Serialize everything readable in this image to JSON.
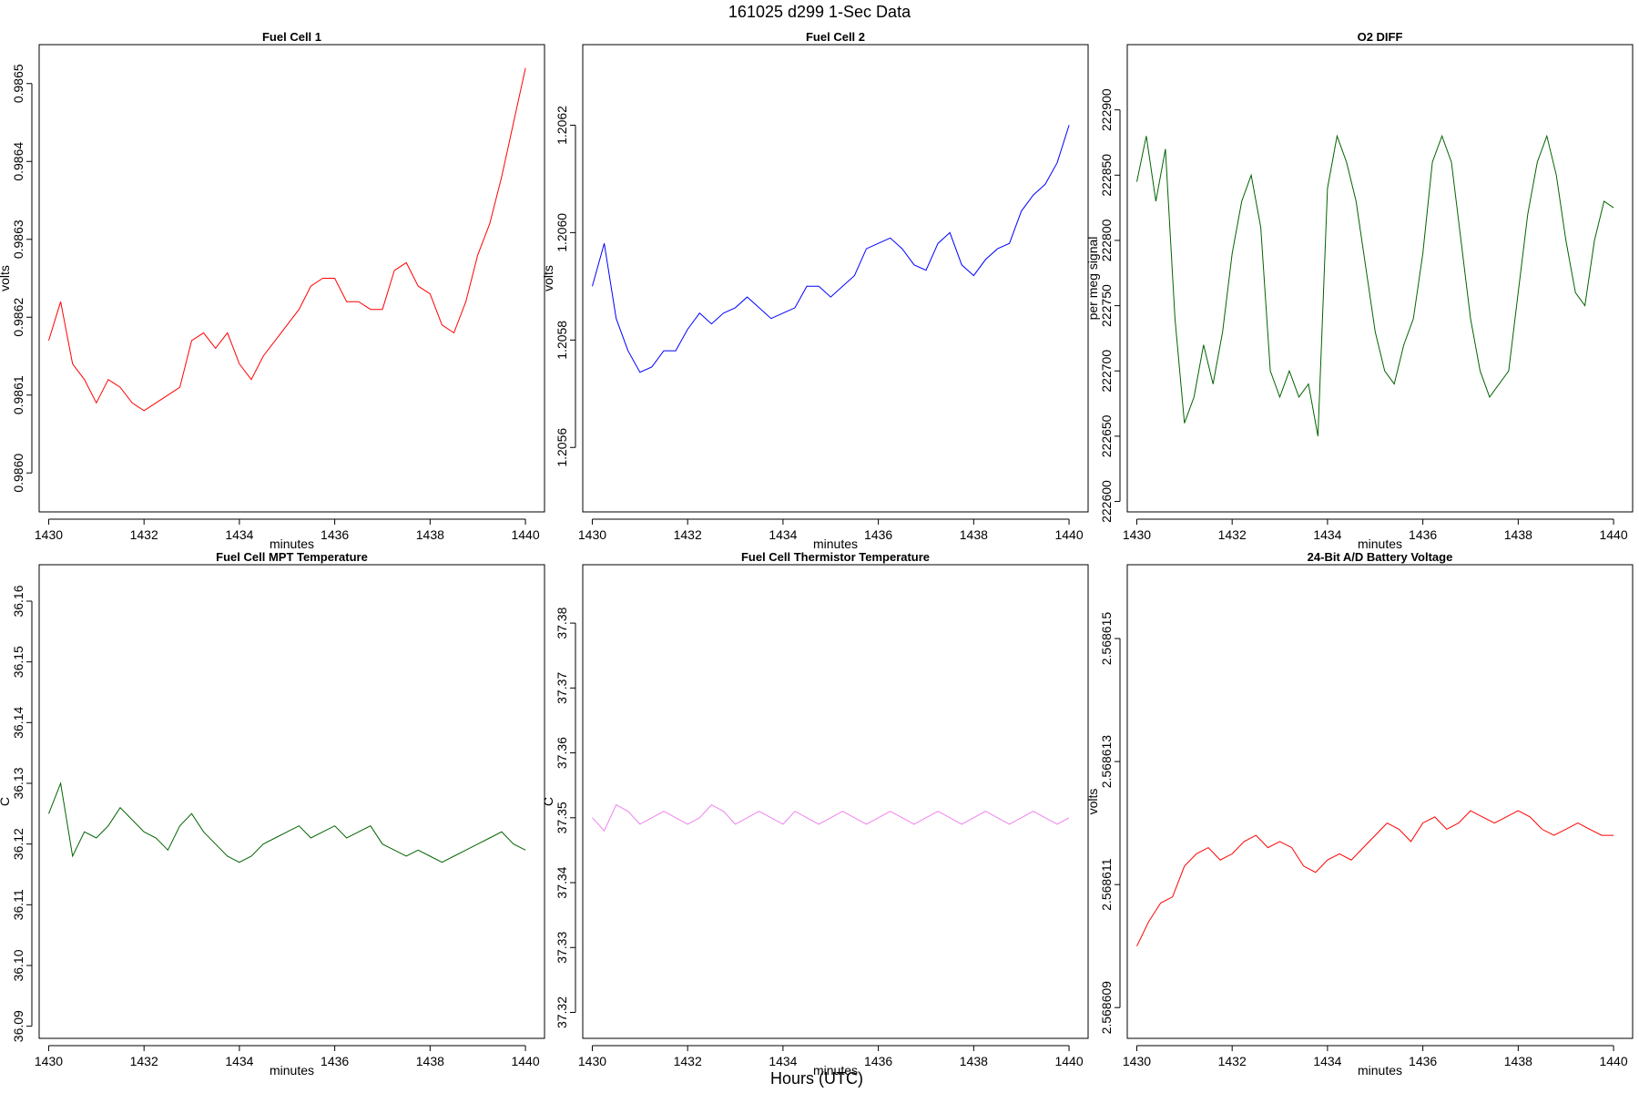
{
  "figure": {
    "title": "161025    d299    1-Sec Data",
    "xlabel": "Hours (UTC)"
  },
  "chart_data": [
    {
      "type": "line",
      "title": "Fuel Cell 1",
      "xlabel": "minutes",
      "ylabel": "volts",
      "color": "#ff0000",
      "xlim": [
        1429.8,
        1440.4
      ],
      "ylim": [
        0.98595,
        0.98655
      ],
      "xticks": [
        1430,
        1432,
        1434,
        1436,
        1438,
        1440
      ],
      "yticks": [
        0.986,
        0.9861,
        0.9862,
        0.9863,
        0.9864,
        0.9865
      ],
      "ytick_labels": [
        "0.9860",
        "0.9861",
        "0.9862",
        "0.9863",
        "0.9864",
        "0.9865"
      ],
      "series": [
        {
          "x": [
            1430,
            1430.25,
            1430.5,
            1430.75,
            1431,
            1431.25,
            1431.5,
            1431.75,
            1432,
            1432.25,
            1432.5,
            1432.75,
            1433,
            1433.25,
            1433.5,
            1433.75,
            1434,
            1434.25,
            1434.5,
            1434.75,
            1435,
            1435.25,
            1435.5,
            1435.75,
            1436,
            1436.25,
            1436.5,
            1436.75,
            1437,
            1437.25,
            1437.5,
            1437.75,
            1438,
            1438.25,
            1438.5,
            1438.75,
            1439,
            1439.25,
            1439.5,
            1439.75,
            1440
          ],
          "values": [
            0.98617,
            0.98622,
            0.98614,
            0.98612,
            0.98609,
            0.98612,
            0.98611,
            0.98609,
            0.98608,
            0.98609,
            0.9861,
            0.98611,
            0.98617,
            0.98618,
            0.98616,
            0.98618,
            0.98614,
            0.98612,
            0.98615,
            0.98617,
            0.98619,
            0.98621,
            0.98624,
            0.98625,
            0.98625,
            0.98622,
            0.98622,
            0.98621,
            0.98621,
            0.98626,
            0.98627,
            0.98624,
            0.98623,
            0.98619,
            0.98618,
            0.98622,
            0.98628,
            0.98632,
            0.98638,
            0.98645,
            0.98652
          ]
        }
      ]
    },
    {
      "type": "line",
      "title": "Fuel Cell 2",
      "xlabel": "minutes",
      "ylabel": "volts",
      "color": "#0000ff",
      "xlim": [
        1429.8,
        1440.4
      ],
      "ylim": [
        1.20548,
        1.20635
      ],
      "xticks": [
        1430,
        1432,
        1434,
        1436,
        1438,
        1440
      ],
      "yticks": [
        1.2056,
        1.2058,
        1.206,
        1.2062
      ],
      "ytick_labels": [
        "1.2056",
        "1.2058",
        "1.2060",
        "1.2062"
      ],
      "series": [
        {
          "x": [
            1430,
            1430.25,
            1430.5,
            1430.75,
            1431,
            1431.25,
            1431.5,
            1431.75,
            1432,
            1432.25,
            1432.5,
            1432.75,
            1433,
            1433.25,
            1433.5,
            1433.75,
            1434,
            1434.25,
            1434.5,
            1434.75,
            1435,
            1435.25,
            1435.5,
            1435.75,
            1436,
            1436.25,
            1436.5,
            1436.75,
            1437,
            1437.25,
            1437.5,
            1437.75,
            1438,
            1438.25,
            1438.5,
            1438.75,
            1439,
            1439.25,
            1439.5,
            1439.75,
            1440
          ],
          "values": [
            1.2059,
            1.20598,
            1.20584,
            1.20578,
            1.20574,
            1.20575,
            1.20578,
            1.20578,
            1.20582,
            1.20585,
            1.20583,
            1.20585,
            1.20586,
            1.20588,
            1.20586,
            1.20584,
            1.20585,
            1.20586,
            1.2059,
            1.2059,
            1.20588,
            1.2059,
            1.20592,
            1.20597,
            1.20598,
            1.20599,
            1.20597,
            1.20594,
            1.20593,
            1.20598,
            1.206,
            1.20594,
            1.20592,
            1.20595,
            1.20597,
            1.20598,
            1.20604,
            1.20607,
            1.20609,
            1.20613,
            1.2062
          ]
        }
      ]
    },
    {
      "type": "line",
      "title": "O2 DIFF",
      "xlabel": "minutes",
      "ylabel": "per meg signal",
      "color": "#006400",
      "xlim": [
        1429.8,
        1440.4
      ],
      "ylim": [
        222592,
        222950
      ],
      "xticks": [
        1430,
        1432,
        1434,
        1436,
        1438,
        1440
      ],
      "yticks": [
        222600,
        222650,
        222700,
        222750,
        222800,
        222850,
        222900
      ],
      "ytick_labels": [
        "222600",
        "222650",
        "222700",
        "222750",
        "222800",
        "222850",
        "222900"
      ],
      "series": [
        {
          "x": [
            1430,
            1430.2,
            1430.4,
            1430.6,
            1430.8,
            1431,
            1431.2,
            1431.4,
            1431.6,
            1431.8,
            1432,
            1432.2,
            1432.4,
            1432.6,
            1432.8,
            1433,
            1433.2,
            1433.4,
            1433.6,
            1433.8,
            1434,
            1434.2,
            1434.4,
            1434.6,
            1434.8,
            1435,
            1435.2,
            1435.4,
            1435.6,
            1435.8,
            1436,
            1436.2,
            1436.4,
            1436.6,
            1436.8,
            1437,
            1437.2,
            1437.4,
            1437.6,
            1437.8,
            1438,
            1438.2,
            1438.4,
            1438.6,
            1438.8,
            1439,
            1439.2,
            1439.4,
            1439.6,
            1439.8,
            1440
          ],
          "values": [
            222845,
            222880,
            222830,
            222870,
            222740,
            222660,
            222680,
            222720,
            222690,
            222730,
            222790,
            222830,
            222850,
            222810,
            222700,
            222680,
            222700,
            222680,
            222690,
            222650,
            222840,
            222880,
            222860,
            222830,
            222780,
            222730,
            222700,
            222690,
            222720,
            222740,
            222790,
            222860,
            222880,
            222860,
            222800,
            222740,
            222700,
            222680,
            222690,
            222700,
            222760,
            222820,
            222860,
            222880,
            222850,
            222800,
            222760,
            222750,
            222800,
            222830,
            222825
          ]
        }
      ]
    },
    {
      "type": "line",
      "title": "Fuel Cell MPT Temperature",
      "xlabel": "minutes",
      "ylabel": "C",
      "color": "#006400",
      "xlim": [
        1429.8,
        1440.4
      ],
      "ylim": [
        36.088,
        36.166
      ],
      "xticks": [
        1430,
        1432,
        1434,
        1436,
        1438,
        1440
      ],
      "yticks": [
        36.09,
        36.1,
        36.11,
        36.12,
        36.13,
        36.14,
        36.15,
        36.16
      ],
      "ytick_labels": [
        "36.09",
        "36.10",
        "36.11",
        "36.12",
        "36.13",
        "36.14",
        "36.15",
        "36.16"
      ],
      "series": [
        {
          "x": [
            1430,
            1430.25,
            1430.5,
            1430.75,
            1431,
            1431.25,
            1431.5,
            1431.75,
            1432,
            1432.25,
            1432.5,
            1432.75,
            1433,
            1433.25,
            1433.5,
            1433.75,
            1434,
            1434.25,
            1434.5,
            1434.75,
            1435,
            1435.25,
            1435.5,
            1435.75,
            1436,
            1436.25,
            1436.5,
            1436.75,
            1437,
            1437.25,
            1437.5,
            1437.75,
            1438,
            1438.25,
            1438.5,
            1438.75,
            1439,
            1439.25,
            1439.5,
            1439.75,
            1440
          ],
          "values": [
            36.125,
            36.13,
            36.118,
            36.122,
            36.121,
            36.123,
            36.126,
            36.124,
            36.122,
            36.121,
            36.119,
            36.123,
            36.125,
            36.122,
            36.12,
            36.118,
            36.117,
            36.118,
            36.12,
            36.121,
            36.122,
            36.123,
            36.121,
            36.122,
            36.123,
            36.121,
            36.122,
            36.123,
            36.12,
            36.119,
            36.118,
            36.119,
            36.118,
            36.117,
            36.118,
            36.119,
            36.12,
            36.121,
            36.122,
            36.12,
            36.119
          ]
        }
      ]
    },
    {
      "type": "line",
      "title": "Fuel Cell Thermistor Temperature",
      "xlabel": "minutes",
      "ylabel": "C",
      "color": "#ee82ee",
      "xlim": [
        1429.8,
        1440.4
      ],
      "ylim": [
        37.316,
        37.389
      ],
      "xticks": [
        1430,
        1432,
        1434,
        1436,
        1438,
        1440
      ],
      "yticks": [
        37.32,
        37.33,
        37.34,
        37.35,
        37.36,
        37.37,
        37.38
      ],
      "ytick_labels": [
        "37.32",
        "37.33",
        "37.34",
        "37.35",
        "37.36",
        "37.37",
        "37.38"
      ],
      "series": [
        {
          "x": [
            1430,
            1430.25,
            1430.5,
            1430.75,
            1431,
            1431.25,
            1431.5,
            1431.75,
            1432,
            1432.25,
            1432.5,
            1432.75,
            1433,
            1433.25,
            1433.5,
            1433.75,
            1434,
            1434.25,
            1434.5,
            1434.75,
            1435,
            1435.25,
            1435.5,
            1435.75,
            1436,
            1436.25,
            1436.5,
            1436.75,
            1437,
            1437.25,
            1437.5,
            1437.75,
            1438,
            1438.25,
            1438.5,
            1438.75,
            1439,
            1439.25,
            1439.5,
            1439.75,
            1440
          ],
          "values": [
            37.35,
            37.348,
            37.352,
            37.351,
            37.349,
            37.35,
            37.351,
            37.35,
            37.349,
            37.35,
            37.352,
            37.351,
            37.349,
            37.35,
            37.351,
            37.35,
            37.349,
            37.351,
            37.35,
            37.349,
            37.35,
            37.351,
            37.35,
            37.349,
            37.35,
            37.351,
            37.35,
            37.349,
            37.35,
            37.351,
            37.35,
            37.349,
            37.35,
            37.351,
            37.35,
            37.349,
            37.35,
            37.351,
            37.35,
            37.349,
            37.35
          ]
        }
      ]
    },
    {
      "type": "line",
      "title": "24-Bit A/D Battery Voltage",
      "xlabel": "minutes",
      "ylabel": "volts",
      "color": "#ff0000",
      "xlim": [
        1429.8,
        1440.4
      ],
      "ylim": [
        2.5686085,
        2.5686162
      ],
      "xticks": [
        1430,
        1432,
        1434,
        1436,
        1438,
        1440
      ],
      "yticks": [
        2.568609,
        2.568611,
        2.568613,
        2.568615
      ],
      "ytick_labels": [
        "2.568609",
        "2.568611",
        "2.568613",
        "2.568615"
      ],
      "series": [
        {
          "x": [
            1430,
            1430.25,
            1430.5,
            1430.75,
            1431,
            1431.25,
            1431.5,
            1431.75,
            1432,
            1432.25,
            1432.5,
            1432.75,
            1433,
            1433.25,
            1433.5,
            1433.75,
            1434,
            1434.25,
            1434.5,
            1434.75,
            1435,
            1435.25,
            1435.5,
            1435.75,
            1436,
            1436.25,
            1436.5,
            1436.75,
            1437,
            1437.25,
            1437.5,
            1437.75,
            1438,
            1438.25,
            1438.5,
            1438.75,
            1439,
            1439.25,
            1439.5,
            1439.75,
            1440
          ],
          "values": [
            2.56861,
            2.5686104,
            2.5686107,
            2.5686108,
            2.5686113,
            2.5686115,
            2.5686116,
            2.5686114,
            2.5686115,
            2.5686117,
            2.5686118,
            2.5686116,
            2.5686117,
            2.5686116,
            2.5686113,
            2.5686112,
            2.5686114,
            2.5686115,
            2.5686114,
            2.5686116,
            2.5686118,
            2.568612,
            2.5686119,
            2.5686117,
            2.568612,
            2.5686121,
            2.5686119,
            2.568612,
            2.5686122,
            2.5686121,
            2.568612,
            2.5686121,
            2.5686122,
            2.5686121,
            2.5686119,
            2.5686118,
            2.5686119,
            2.568612,
            2.5686119,
            2.5686118,
            2.5686118
          ]
        }
      ]
    }
  ]
}
